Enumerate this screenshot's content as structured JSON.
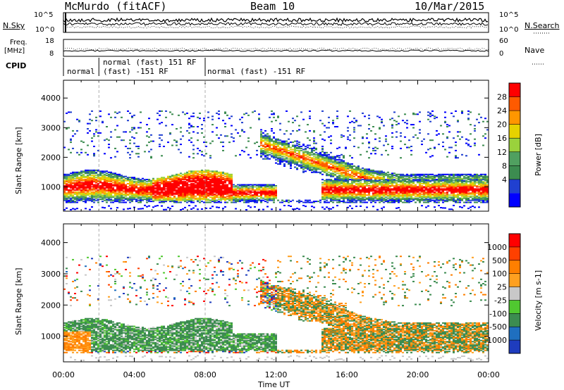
{
  "header": {
    "station": "McMurdo (fitACF)",
    "beam": "Beam 10",
    "date": "10/Mar/2015"
  },
  "noise_panel": {
    "left_label": "N.Sky",
    "right_label": "N.Search",
    "left_ticks": [
      "10^5",
      "10^0"
    ],
    "right_ticks": [
      "10^5",
      "10^0"
    ]
  },
  "freq_panel": {
    "left_label_1": "Freq.",
    "left_label_2": "[MHz]",
    "right_label": "Nave",
    "left_ticks": [
      "18",
      "8"
    ],
    "right_ticks": [
      "60",
      "0"
    ]
  },
  "cpid": {
    "label": "CPID",
    "segments": [
      "normal",
      "normal (fast) 151 RF",
      "(fast) -151 RF",
      "normal (fast) -151 RF"
    ]
  },
  "colors": {
    "power_scale": [
      "#0000ff",
      "#2040d0",
      "#3c8c50",
      "#50a060",
      "#9ad23c",
      "#e6d200",
      "#ff9600",
      "#ff5a00",
      "#ff0000"
    ],
    "velocity_scale": [
      "#ff0000",
      "#ff4000",
      "#ff7f00",
      "#ffa020",
      "#c8c8c8",
      "#50c830",
      "#3c8c50",
      "#1f6fbf",
      "#1e3cbe"
    ]
  },
  "chart_data": [
    {
      "type": "heatmap",
      "title": "",
      "ylabel": "Slant Range [km]",
      "xlabel": "",
      "ylim": [
        180,
        4600
      ],
      "x_ticks": [
        "00:00",
        "04:00",
        "08:00",
        "12:00",
        "16:00",
        "20:00",
        "00:00"
      ],
      "y_ticks": [
        "1000",
        "2000",
        "3000",
        "4000"
      ],
      "colorbar_label": "Power [dB]",
      "colorbar_ticks": [
        "28",
        "24",
        "20",
        "16",
        "12",
        "8",
        "4"
      ],
      "description_range_km": [
        500,
        3500
      ]
    },
    {
      "type": "heatmap",
      "title": "",
      "ylabel": "Slant Range [km]",
      "xlabel": "Time UT",
      "ylim": [
        180,
        4600
      ],
      "x_ticks": [
        "00:00",
        "04:00",
        "08:00",
        "12:00",
        "16:00",
        "20:00",
        "00:00"
      ],
      "y_ticks": [
        "1000",
        "2000",
        "3000",
        "4000"
      ],
      "colorbar_label": "Velocity [m s-1]",
      "colorbar_ticks": [
        "1000",
        "500",
        "100",
        "25",
        "-25",
        "-100",
        "-500",
        "-1000"
      ]
    }
  ]
}
